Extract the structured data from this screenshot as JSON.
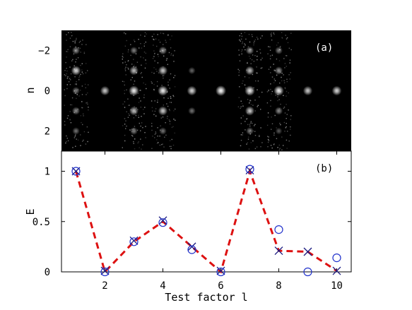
{
  "chart_data": [
    {
      "type": "heatmap",
      "panel_label": "(a)",
      "ylabel": "n",
      "xlim": [
        0.5,
        10.5
      ],
      "ylim": [
        3,
        -3
      ],
      "yticks": [
        -2,
        0,
        2
      ],
      "ytick_labels": [
        "−2",
        "0",
        "2"
      ],
      "background": "#000000",
      "columns": [
        {
          "x": 1,
          "spots": [
            [
              -2,
              0.55
            ],
            [
              -1,
              0.85
            ],
            [
              0,
              0.5
            ],
            [
              1,
              0.55
            ],
            [
              2,
              0.45
            ]
          ]
        },
        {
          "x": 2,
          "spots": [
            [
              0,
              0.8
            ]
          ]
        },
        {
          "x": 3,
          "spots": [
            [
              -2,
              0.5
            ],
            [
              -1,
              0.75
            ],
            [
              0,
              0.95
            ],
            [
              1,
              0.75
            ],
            [
              2,
              0.5
            ]
          ]
        },
        {
          "x": 4,
          "spots": [
            [
              -2,
              0.6
            ],
            [
              -1,
              0.8
            ],
            [
              0,
              0.95
            ],
            [
              1,
              0.8
            ],
            [
              2,
              0.45
            ]
          ]
        },
        {
          "x": 5,
          "spots": [
            [
              -1,
              0.4
            ],
            [
              0,
              0.85
            ],
            [
              1,
              0.45
            ]
          ]
        },
        {
          "x": 6,
          "spots": [
            [
              0,
              1.0
            ]
          ]
        },
        {
          "x": 7,
          "spots": [
            [
              -2,
              0.6
            ],
            [
              -1,
              0.75
            ],
            [
              0,
              0.95
            ],
            [
              1,
              0.8
            ],
            [
              2,
              0.5
            ]
          ]
        },
        {
          "x": 8,
          "spots": [
            [
              -2,
              0.5
            ],
            [
              -1,
              0.6
            ],
            [
              0,
              0.95
            ],
            [
              1,
              0.55
            ],
            [
              2,
              0.35
            ]
          ]
        },
        {
          "x": 9,
          "spots": [
            [
              0,
              0.8
            ]
          ]
        },
        {
          "x": 10,
          "spots": [
            [
              0,
              0.85
            ]
          ]
        }
      ],
      "noise_columns": [
        1,
        3,
        4,
        7,
        8
      ]
    },
    {
      "type": "line",
      "panel_label": "(b)",
      "xlabel": "Test factor l",
      "ylabel": "E",
      "xlim": [
        0.5,
        10.5
      ],
      "ylim": [
        0,
        1.2
      ],
      "xticks": [
        2,
        4,
        6,
        8,
        10
      ],
      "yticks": [
        0,
        0.5,
        1
      ],
      "ytick_labels": [
        "0",
        "0.5",
        "1"
      ],
      "series": [
        {
          "style": "dashed-line",
          "color": "#dd1111",
          "x": [
            1,
            2,
            3,
            4,
            5,
            6,
            7,
            8,
            9,
            10
          ],
          "y": [
            1.0,
            0.0,
            0.3,
            0.5,
            0.25,
            0.0,
            1.0,
            0.21,
            0.2,
            0.01
          ]
        },
        {
          "style": "cross-markers",
          "color": "#1a1a80",
          "x": [
            1,
            2,
            3,
            4,
            5,
            6,
            7,
            8,
            9,
            10
          ],
          "y": [
            1.0,
            0.01,
            0.31,
            0.51,
            0.25,
            0.01,
            1.01,
            0.21,
            0.2,
            0.01
          ]
        },
        {
          "style": "circle-markers",
          "color": "#2233cc",
          "x": [
            1,
            2,
            3,
            4,
            5,
            6,
            7,
            8,
            9,
            10
          ],
          "y": [
            1.0,
            0.0,
            0.3,
            0.49,
            0.22,
            0.0,
            1.02,
            0.42,
            0.0,
            0.14
          ]
        }
      ]
    }
  ]
}
